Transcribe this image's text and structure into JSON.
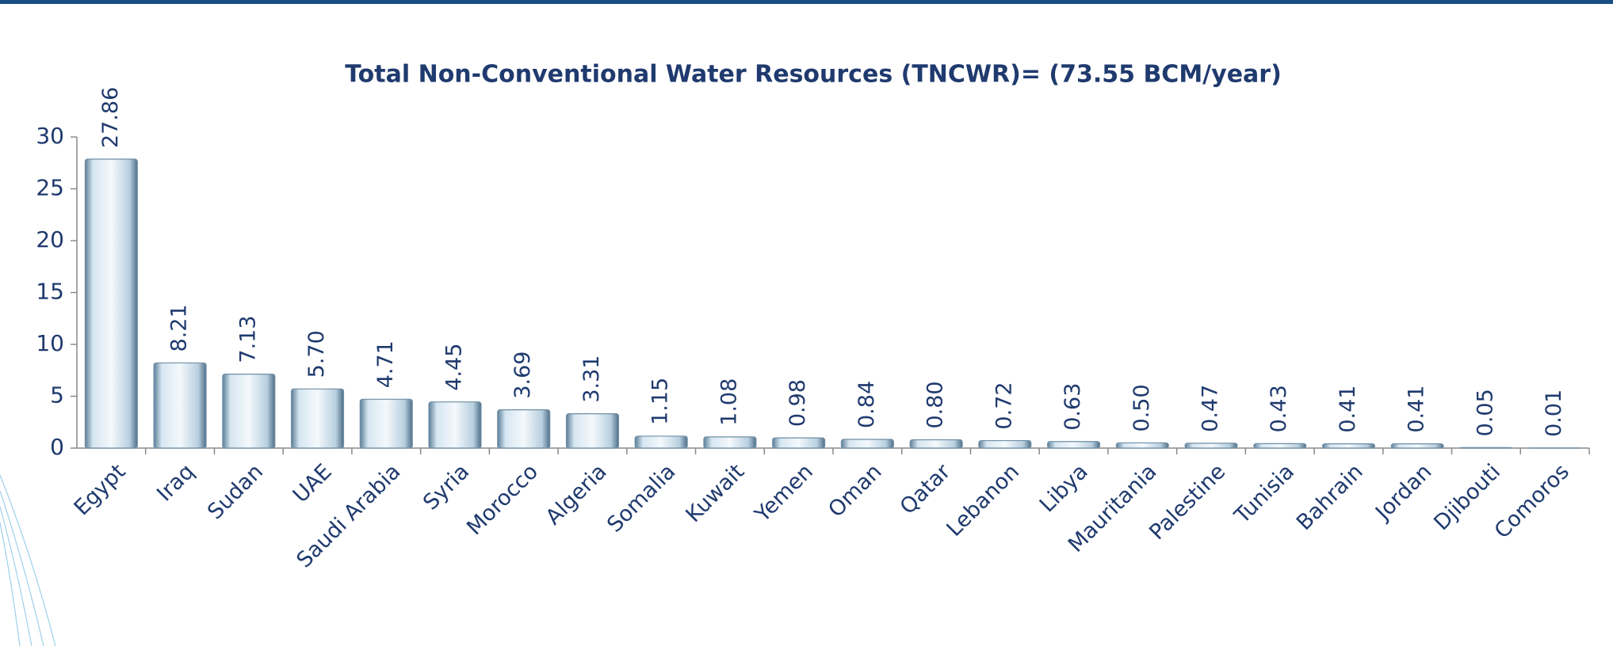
{
  "chart_data": {
    "type": "bar",
    "title": "Total Non-Conventional Water Resources (TNCWR)= (73.55 BCM/year)",
    "categories": [
      "Egypt",
      "Iraq",
      "Sudan",
      "UAE",
      "Saudi Arabia",
      "Syria",
      "Morocco",
      "Algeria",
      "Somalia",
      "Kuwait",
      "Yemen",
      "Oman",
      "Qatar",
      "Lebanon",
      "Libya",
      "Mauritania",
      "Palestine",
      "Tunisia",
      "Bahrain",
      "Jordan",
      "Djibouti",
      "Comoros"
    ],
    "values": [
      27.86,
      8.21,
      7.13,
      5.7,
      4.71,
      4.45,
      3.69,
      3.31,
      1.15,
      1.08,
      0.98,
      0.84,
      0.8,
      0.72,
      0.63,
      0.5,
      0.47,
      0.43,
      0.41,
      0.41,
      0.05,
      0.01
    ],
    "value_labels": [
      "27.86",
      "8.21",
      "7.13",
      "5.70",
      "4.71",
      "4.45",
      "3.69",
      "3.31",
      "1.15",
      "1.08",
      "0.98",
      "0.84",
      "0.80",
      "0.72",
      "0.63",
      "0.50",
      "0.47",
      "0.43",
      "0.41",
      "0.41",
      "0.05",
      "0.01"
    ],
    "color": "#a9cbe3",
    "ylim": [
      0,
      30
    ],
    "yticks": [
      0,
      5,
      10,
      15,
      20,
      25,
      30
    ],
    "grid": false
  }
}
